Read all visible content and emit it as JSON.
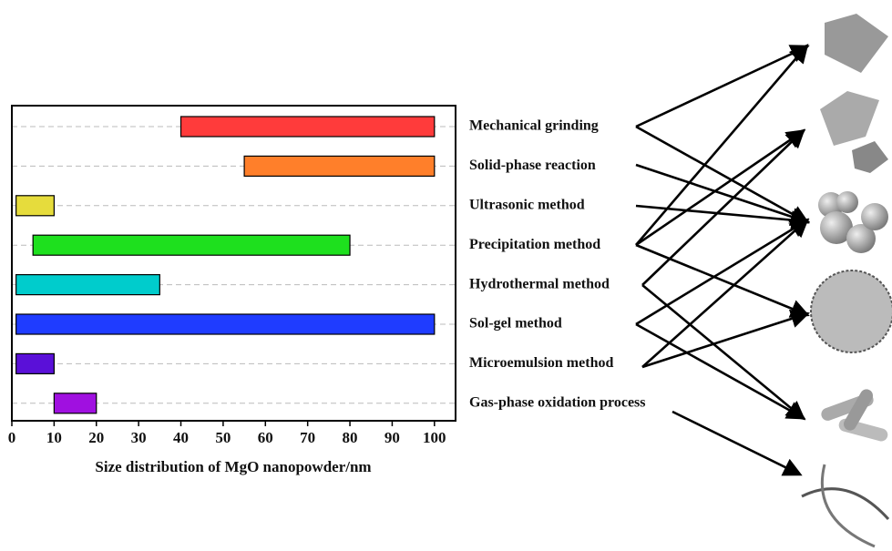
{
  "chart_data": {
    "type": "floating-bar",
    "x_label": "Size distribution of MgO nanopowder/nm",
    "categories": [
      "Mechanical grinding",
      "Solid-phase reaction",
      "Ultrasonic method",
      "Precipitation method",
      "Hydrothermal method",
      "Sol-gel method",
      "Microemulsion method",
      "Gas-phase oxidation process"
    ],
    "values": [
      [
        40,
        100
      ],
      [
        55,
        100
      ],
      [
        1,
        10
      ],
      [
        5,
        80
      ],
      [
        1,
        35
      ],
      [
        1,
        100
      ],
      [
        1,
        10
      ],
      [
        10,
        20
      ]
    ],
    "colors": [
      "#ff3b3b",
      "#ff7f2a",
      "#e6dc3c",
      "#1ee01e",
      "#00cccc",
      "#1f3cff",
      "#5a10d8",
      "#a010e0"
    ],
    "xlim": [
      0,
      105
    ],
    "xticks": [
      0,
      10,
      20,
      30,
      40,
      50,
      60,
      70,
      80,
      90,
      100
    ],
    "grid": true
  }
}
